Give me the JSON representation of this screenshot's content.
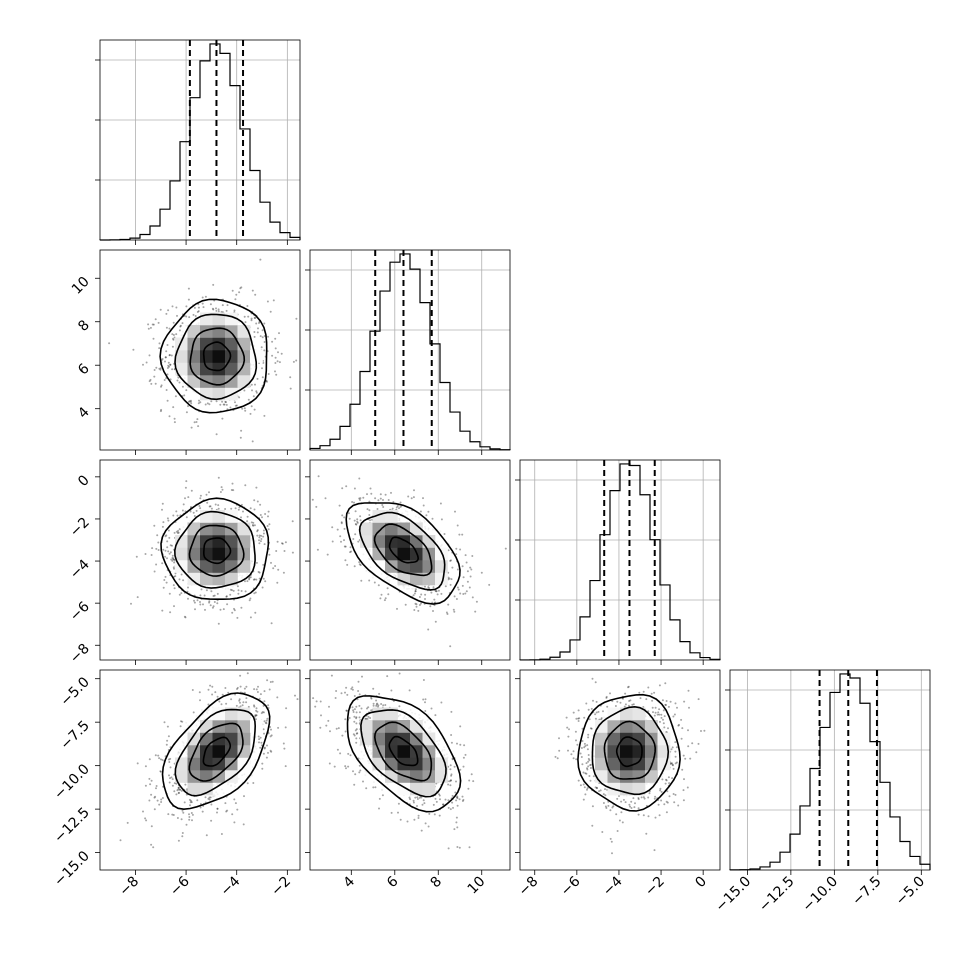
{
  "chart_data": {
    "type": "corner",
    "params": [
      {
        "id": "p0",
        "range": [
          -9.4,
          -1.5
        ],
        "ticks": [
          -8,
          -6,
          -4,
          -2
        ],
        "tick_labels": [
          "−8",
          "−6",
          "−4",
          "−2"
        ],
        "mean": -4.8,
        "std": 1.05,
        "quantiles": [
          -5.85,
          -4.8,
          -3.75
        ]
      },
      {
        "id": "p1",
        "range": [
          2.1,
          11.3
        ],
        "ticks": [
          4,
          6,
          8,
          10
        ],
        "tick_labels": [
          "4",
          "6",
          "8",
          "10"
        ],
        "mean": 6.4,
        "std": 1.3,
        "quantiles": [
          5.1,
          6.4,
          7.7
        ]
      },
      {
        "id": "p2",
        "range": [
          -8.7,
          0.8
        ],
        "ticks": [
          -8,
          -6,
          -4,
          -2,
          0
        ],
        "tick_labels": [
          "−8",
          "−6",
          "−4",
          "−2",
          "0"
        ],
        "mean": -3.5,
        "std": 1.2,
        "quantiles": [
          -4.7,
          -3.5,
          -2.3
        ]
      },
      {
        "id": "p3",
        "range": [
          -16.0,
          -4.5
        ],
        "ticks": [
          -15.0,
          -12.5,
          -10.0,
          -7.5,
          -5.0
        ],
        "tick_labels": [
          "−15.0",
          "−12.5",
          "−10.0",
          "−7.5",
          "−5.0"
        ],
        "mean": -9.2,
        "std": 1.65,
        "quantiles": [
          -10.85,
          -9.2,
          -7.55
        ]
      }
    ],
    "correlations": [
      [
        1,
        0,
        0,
        0.5
      ],
      [
        0,
        1,
        -0.5,
        -0.5
      ],
      [
        0,
        -0.5,
        1,
        0
      ],
      [
        0.5,
        -0.5,
        0,
        1
      ]
    ],
    "contour_levels_sigma": [
      0.5,
      1.0,
      1.5,
      2.0
    ],
    "histogram": {
      "bins": 20,
      "histtype": "step"
    },
    "grid": true,
    "samples_per_panel": 1000
  }
}
